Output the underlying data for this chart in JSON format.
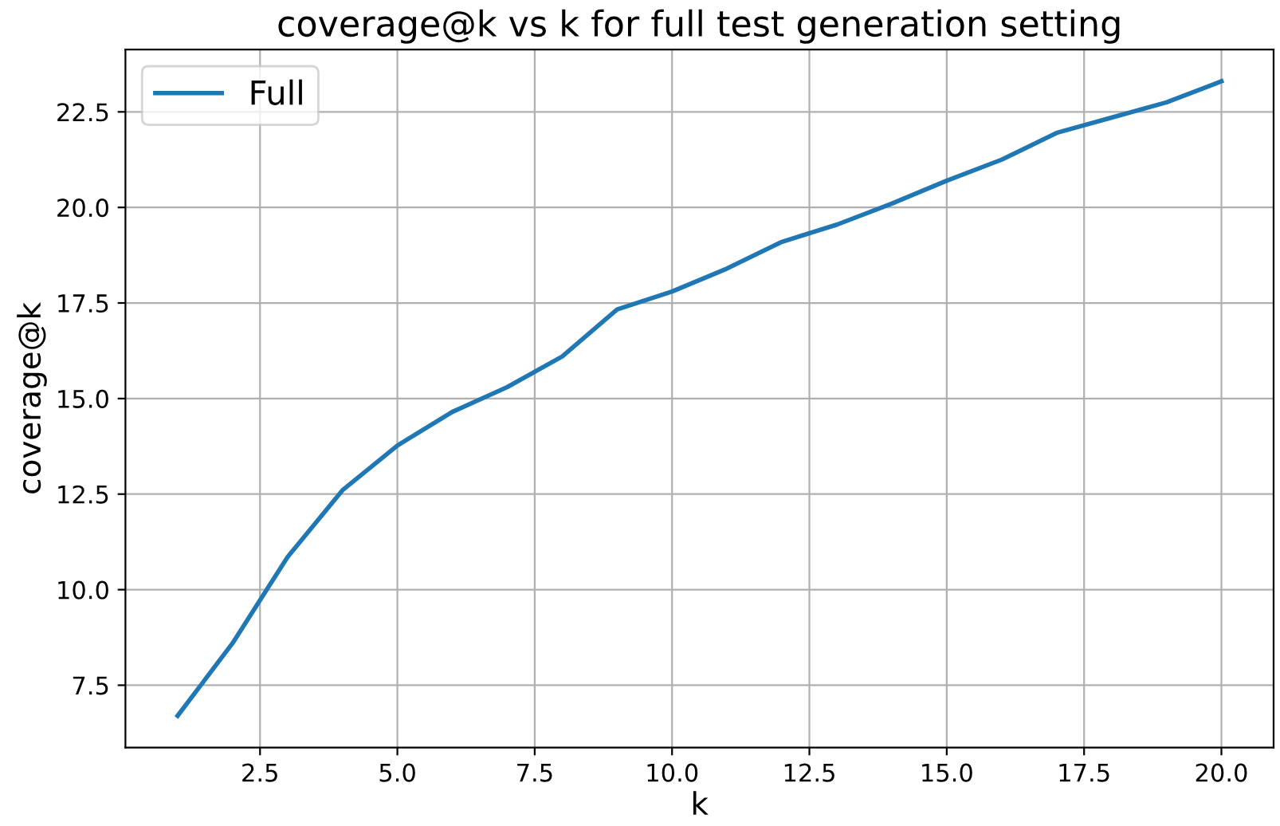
{
  "chart_data": {
    "type": "line",
    "title": "coverage@k vs k for full test generation setting",
    "xlabel": "k",
    "ylabel": "coverage@k",
    "x": [
      1,
      2,
      3,
      4,
      5,
      6,
      7,
      8,
      9,
      10,
      11,
      12,
      13,
      14,
      15,
      16,
      17,
      18,
      19,
      20
    ],
    "series": [
      {
        "name": "Full",
        "color": "#1f77b4",
        "values": [
          6.7,
          8.6,
          10.85,
          12.6,
          13.77,
          14.65,
          15.3,
          16.1,
          17.33,
          17.8,
          18.4,
          19.1,
          19.55,
          20.1,
          20.7,
          21.25,
          21.95,
          22.35,
          22.75,
          23.3
        ]
      }
    ],
    "xlim": [
      0.05,
      20.95
    ],
    "ylim": [
      5.87,
      24.13
    ],
    "xticks": [
      {
        "value": 2.5,
        "label": "2.5"
      },
      {
        "value": 5,
        "label": "5.0"
      },
      {
        "value": 7.5,
        "label": "7.5"
      },
      {
        "value": 10,
        "label": "10.0"
      },
      {
        "value": 12.5,
        "label": "12.5"
      },
      {
        "value": 15,
        "label": "15.0"
      },
      {
        "value": 17.5,
        "label": "17.5"
      },
      {
        "value": 20,
        "label": "20.0"
      }
    ],
    "yticks": [
      {
        "value": 7.5,
        "label": "7.5"
      },
      {
        "value": 10,
        "label": "10.0"
      },
      {
        "value": 12.5,
        "label": "12.5"
      },
      {
        "value": 15,
        "label": "15.0"
      },
      {
        "value": 17.5,
        "label": "17.5"
      },
      {
        "value": 20,
        "label": "20.0"
      },
      {
        "value": 22.5,
        "label": "22.5"
      }
    ],
    "grid": true,
    "legend": "top left"
  }
}
